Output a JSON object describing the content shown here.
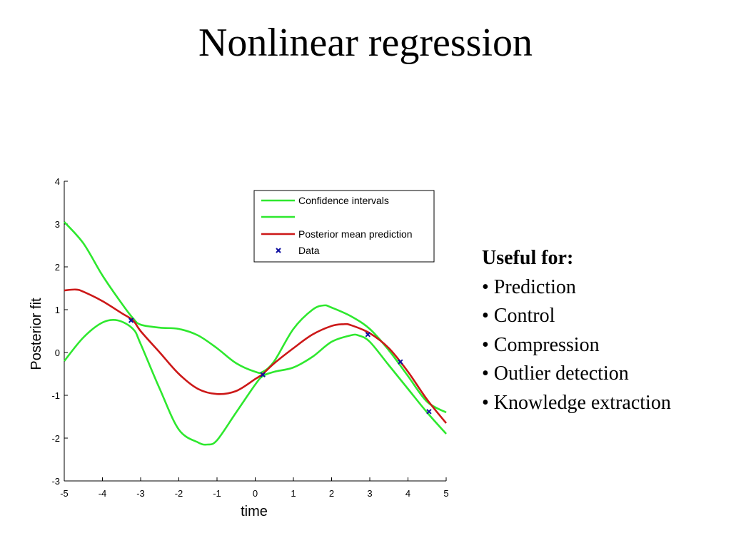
{
  "slide": {
    "title": "Nonlinear regression"
  },
  "side_panel": {
    "heading": "Useful for:",
    "items": [
      "• Prediction",
      "• Control",
      "• Compression",
      "• Outlier detection",
      "• Knowledge extraction"
    ]
  },
  "chart_data": {
    "type": "line",
    "xlabel": "time",
    "ylabel": "Posterior fit",
    "xlim": [
      -5,
      5
    ],
    "ylim": [
      -3,
      4
    ],
    "xticks": [
      -5,
      -4,
      -3,
      -2,
      -1,
      0,
      1,
      2,
      3,
      4,
      5
    ],
    "yticks": [
      -3,
      -2,
      -1,
      0,
      1,
      2,
      3,
      4
    ],
    "grid": false,
    "legend_position": "top-right",
    "legend": [
      "Confidence intervals",
      "",
      "Posterior mean prediction",
      "Data"
    ],
    "colors": {
      "ci": "#2ee82e",
      "mean": "#cc1818",
      "data": "#1010a0",
      "axis": "#000000"
    },
    "series": [
      {
        "name": "Confidence intervals",
        "x": [
          -5,
          -4.5,
          -4,
          -3.5,
          -3.2,
          -3,
          -2.5,
          -2,
          -1.5,
          -1,
          -0.5,
          0,
          0.2,
          0.5,
          1,
          1.5,
          1.8,
          2,
          2.5,
          3,
          3.5,
          4,
          4.5,
          5
        ],
        "y": [
          3.05,
          2.55,
          1.8,
          1.15,
          0.8,
          0.65,
          0.58,
          0.55,
          0.4,
          0.1,
          -0.25,
          -0.45,
          -0.45,
          -0.2,
          0.55,
          1.0,
          1.1,
          1.05,
          0.85,
          0.55,
          0.05,
          -0.55,
          -1.15,
          -1.4
        ]
      },
      {
        "name": "",
        "x": [
          -5,
          -4.5,
          -4,
          -3.6,
          -3.2,
          -3,
          -2.5,
          -2,
          -1.5,
          -1.25,
          -1,
          -0.5,
          0,
          0.2,
          0.5,
          1,
          1.5,
          2,
          2.5,
          2.7,
          3,
          3.5,
          4,
          4.5,
          5
        ],
        "y": [
          -0.2,
          0.35,
          0.7,
          0.75,
          0.55,
          0.2,
          -0.85,
          -1.8,
          -2.1,
          -2.15,
          -2.05,
          -1.4,
          -0.75,
          -0.55,
          -0.45,
          -0.35,
          -0.1,
          0.25,
          0.4,
          0.4,
          0.25,
          -0.3,
          -0.85,
          -1.4,
          -1.9
        ]
      },
      {
        "name": "Posterior mean prediction",
        "x": [
          -5,
          -4.7,
          -4.5,
          -4,
          -3.5,
          -3.2,
          -3,
          -2.5,
          -2,
          -1.5,
          -1,
          -0.5,
          0,
          0.2,
          0.5,
          1,
          1.5,
          2,
          2.3,
          2.5,
          3,
          3.5,
          4,
          4.5,
          5
        ],
        "y": [
          1.45,
          1.47,
          1.42,
          1.2,
          0.92,
          0.75,
          0.5,
          0.0,
          -0.5,
          -0.85,
          -0.97,
          -0.9,
          -0.62,
          -0.5,
          -0.25,
          0.1,
          0.42,
          0.62,
          0.66,
          0.64,
          0.45,
          0.1,
          -0.45,
          -1.1,
          -1.65
        ]
      }
    ],
    "data_points": [
      {
        "x": -3.25,
        "y": 0.75
      },
      {
        "x": 0.2,
        "y": -0.52
      },
      {
        "x": 2.95,
        "y": 0.42
      },
      {
        "x": 3.8,
        "y": -0.22
      },
      {
        "x": 4.55,
        "y": -1.38
      }
    ]
  }
}
